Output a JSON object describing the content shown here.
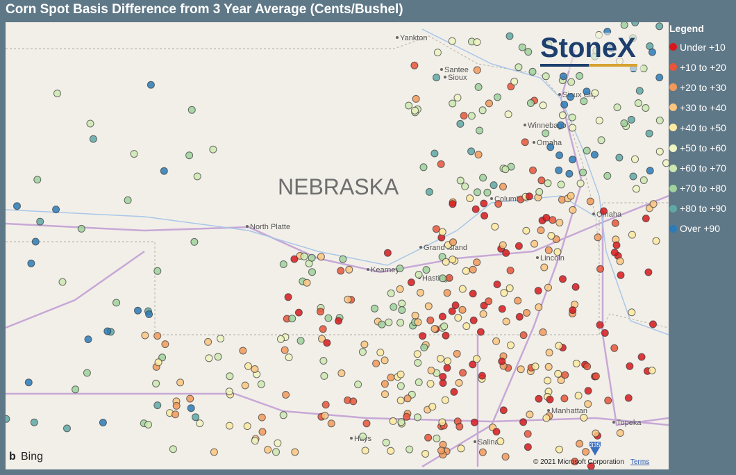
{
  "header": {
    "title": "Corn Spot Basis Difference from 3 Year Average (Cents/Bushel)"
  },
  "legend": {
    "title": "Legend",
    "items": [
      {
        "label": "Under +10",
        "color": "#d7191c"
      },
      {
        "label": "+10 to +20",
        "color": "#e8553a"
      },
      {
        "label": "+20 to +30",
        "color": "#f29a5a"
      },
      {
        "label": "+30 to +40",
        "color": "#fbc57f"
      },
      {
        "label": "+40 to +50",
        "color": "#fdeaa0"
      },
      {
        "label": "+50 to +60",
        "color": "#eef5c2"
      },
      {
        "label": "+60 to +70",
        "color": "#cde9b0"
      },
      {
        "label": "+70 to +80",
        "color": "#9fd29c"
      },
      {
        "label": "+80 to +90",
        "color": "#5fa8a6"
      },
      {
        "label": "Over +90",
        "color": "#2b7bb9"
      }
    ]
  },
  "map": {
    "state": "NEBRASKA",
    "logo": "StoneX",
    "places": [
      "Yankton",
      "Santee",
      "Sioux",
      "Sioux City",
      "Winnebago",
      "Omaha",
      "Columbus",
      "Omaha",
      "North Platte",
      "Grand Island",
      "Kearney",
      "Hastings",
      "Lincoln",
      "Hays",
      "Salina",
      "Manhattan",
      "Topeka"
    ],
    "shield": "335",
    "attribution": {
      "provider": "Bing",
      "copyright": "© 2021 Microsoft Corporation",
      "terms": "Terms"
    }
  }
}
